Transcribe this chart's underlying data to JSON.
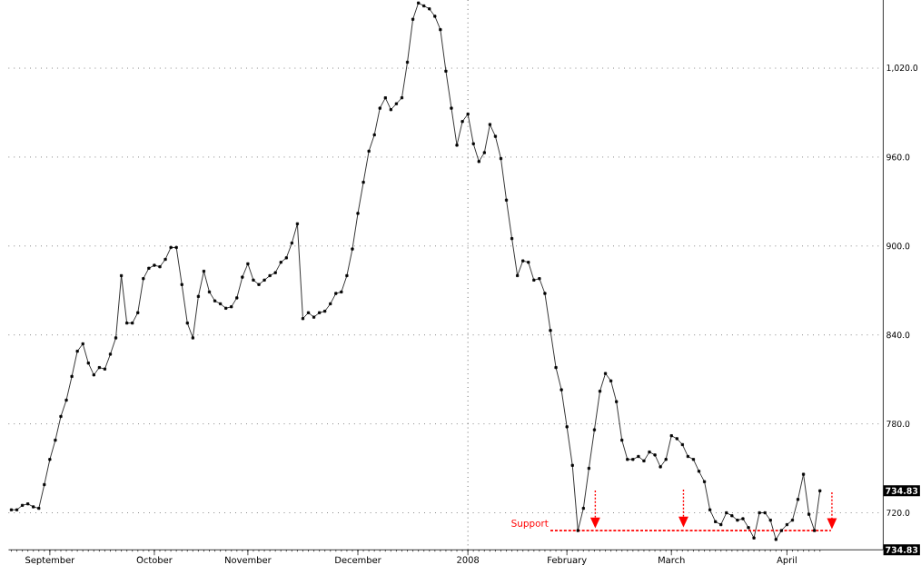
{
  "chart_data": {
    "type": "line",
    "categories": [
      null,
      null,
      null,
      null,
      null,
      null,
      null,
      "September",
      null,
      null,
      null,
      null,
      null,
      null,
      null,
      null,
      null,
      null,
      null,
      null,
      null,
      null,
      null,
      null,
      null,
      null,
      "October",
      null,
      null,
      null,
      null,
      null,
      null,
      null,
      null,
      null,
      null,
      null,
      null,
      null,
      null,
      null,
      null,
      "November",
      null,
      null,
      null,
      null,
      null,
      null,
      null,
      null,
      null,
      null,
      null,
      null,
      null,
      null,
      null,
      null,
      null,
      null,
      null,
      "December",
      null,
      null,
      null,
      null,
      null,
      null,
      null,
      null,
      null,
      null,
      null,
      null,
      null,
      null,
      null,
      null,
      null,
      null,
      null,
      "2008",
      null,
      null,
      null,
      null,
      null,
      null,
      null,
      null,
      null,
      null,
      null,
      null,
      null,
      null,
      null,
      null,
      null,
      "February",
      null,
      null,
      null,
      null,
      null,
      null,
      null,
      null,
      null,
      null,
      null,
      null,
      null,
      null,
      null,
      null,
      null,
      null,
      "March",
      null,
      null,
      null,
      null,
      null,
      null,
      null,
      null,
      null,
      null,
      null,
      null,
      null,
      null,
      null,
      null,
      null,
      null,
      null,
      null,
      "April",
      null,
      null,
      null,
      null,
      null,
      null,
      null,
      null,
      null,
      null,
      null,
      null,
      null,
      null,
      null,
      null,
      null
    ],
    "series": [
      {
        "color": "#000000",
        "values": [
          722,
          722,
          725,
          726,
          724,
          723,
          739,
          756,
          769,
          785,
          796,
          812,
          829,
          834,
          821,
          813,
          818,
          817,
          827,
          838,
          880,
          848,
          848,
          855,
          878,
          885,
          887,
          886,
          891,
          899,
          899,
          874,
          848,
          838,
          866,
          883,
          869,
          863,
          861,
          858,
          859,
          865,
          879,
          888,
          877,
          874,
          877,
          880,
          882,
          889,
          892,
          902,
          915,
          851,
          855,
          852,
          855,
          856,
          861,
          868,
          869,
          880,
          898,
          922,
          943,
          964,
          975,
          993,
          1000,
          992,
          996,
          1000,
          1024,
          1053,
          1064,
          1062,
          1060,
          1055,
          1046,
          1018,
          993,
          968,
          984,
          989,
          969,
          957,
          963,
          982,
          974,
          959,
          931,
          905,
          880,
          890,
          889,
          877,
          878,
          868,
          843,
          818,
          803,
          778,
          752,
          708,
          723,
          750,
          776,
          802,
          814,
          809,
          795,
          769,
          756,
          756,
          758,
          755,
          761,
          759,
          751,
          756,
          772,
          770,
          766,
          758,
          756,
          748,
          741,
          722,
          714,
          712,
          720,
          718,
          715,
          716,
          710,
          703,
          720,
          720,
          715,
          702,
          708,
          712,
          715,
          729,
          746,
          719,
          708,
          734.83,
          null,
          null,
          null,
          null,
          null,
          null,
          null,
          null,
          null,
          null,
          null
        ]
      },
      {
        "name": "Support",
        "type": "line",
        "color": "#ff0000",
        "marker": "none",
        "line_style": "dashed",
        "values": [
          null,
          null,
          null,
          null,
          null,
          null,
          null,
          null,
          null,
          null,
          null,
          null,
          null,
          null,
          null,
          null,
          null,
          null,
          null,
          null,
          null,
          null,
          null,
          null,
          null,
          null,
          null,
          null,
          null,
          null,
          null,
          null,
          null,
          null,
          null,
          null,
          null,
          null,
          null,
          null,
          null,
          null,
          null,
          null,
          null,
          null,
          null,
          null,
          null,
          null,
          null,
          null,
          null,
          null,
          null,
          null,
          null,
          null,
          null,
          null,
          null,
          null,
          null,
          null,
          null,
          null,
          null,
          null,
          null,
          null,
          null,
          null,
          null,
          null,
          null,
          null,
          null,
          null,
          null,
          null,
          null,
          null,
          null,
          null,
          null,
          null,
          null,
          null,
          null,
          null,
          null,
          null,
          null,
          null,
          null,
          null,
          null,
          null,
          708,
          708,
          708,
          708,
          708,
          708,
          708,
          708,
          708,
          708,
          708,
          708,
          708,
          708,
          708,
          708,
          708,
          708,
          708,
          708,
          708,
          708,
          708,
          708,
          708,
          708,
          708,
          708,
          708,
          708,
          708,
          708,
          708,
          708,
          708,
          708,
          708,
          708,
          708,
          708,
          708,
          708,
          708,
          708,
          708,
          708,
          708,
          708,
          708,
          708,
          708,
          708,
          null,
          null,
          null,
          null,
          null,
          null,
          null,
          null,
          null
        ]
      }
    ],
    "ylim": [
      695,
      1066
    ],
    "yticks": [
      {
        "value": 720,
        "label": "720.0"
      },
      {
        "value": 780,
        "label": "780.0"
      },
      {
        "value": 840,
        "label": "840.0"
      },
      {
        "value": 900,
        "label": "900.0"
      },
      {
        "value": 960,
        "label": "960.0"
      },
      {
        "value": 1020,
        "label": "1,020.0"
      }
    ],
    "grid": "y",
    "marker": "square",
    "line_style": "solid",
    "ref_lines": [
      {
        "axis": "x",
        "value": "2008",
        "color": "#000000",
        "line_style": "dotted"
      }
    ],
    "annotations": [
      "734.83",
      "734.83"
    ]
  }
}
